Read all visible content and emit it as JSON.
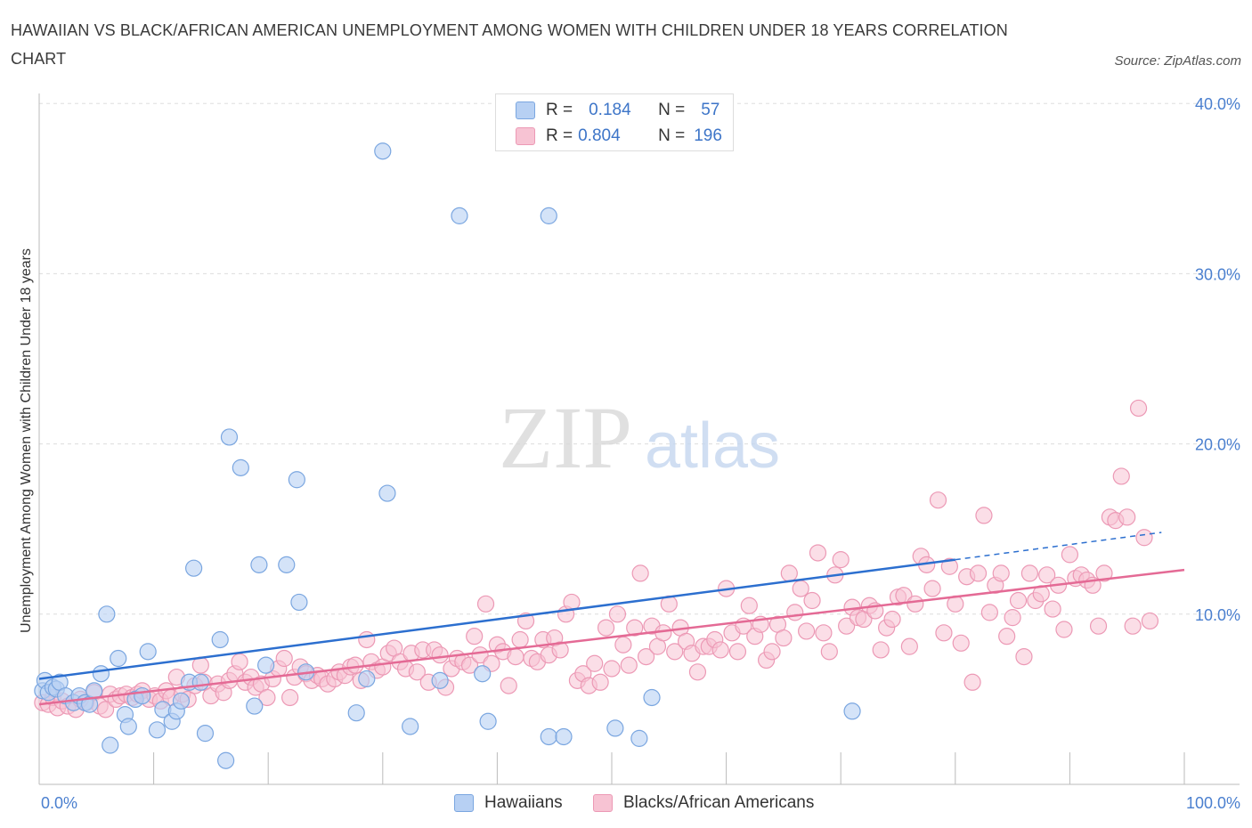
{
  "title": "HAWAIIAN VS BLACK/AFRICAN AMERICAN UNEMPLOYMENT AMONG WOMEN WITH CHILDREN UNDER 18 YEARS CORRELATION CHART",
  "source": "Source: ZipAtlas.com",
  "watermark": {
    "zip": "ZIP",
    "atlas": "atlas"
  },
  "legend": {
    "rows": [
      {
        "r_label": "R =",
        "r_value": "0.184",
        "n_label": "N =",
        "n_value": "57"
      },
      {
        "r_label": "R =",
        "r_value": "0.804",
        "n_label": "N =",
        "n_value": "196"
      }
    ]
  },
  "bottom_legend": {
    "hawaiians": "Hawaiians",
    "blacks": "Blacks/African Americans"
  },
  "colors": {
    "hawaiian_fill": "#b7d0f3",
    "hawaiian_stroke": "#7aa6e0",
    "hawaiian_line": "#2c6fcf",
    "black_fill": "#f7c3d3",
    "black_stroke": "#ec99b5",
    "black_line": "#e46a95",
    "axis_text": "#4a7fcf",
    "grid": "#dddddd"
  },
  "chart_data": {
    "type": "scatter",
    "title": "HAWAIIAN VS BLACK/AFRICAN AMERICAN UNEMPLOYMENT AMONG WOMEN WITH CHILDREN UNDER 18 YEARS CORRELATION CHART",
    "xlabel": "",
    "ylabel": "Unemployment Among Women with Children Under 18 years",
    "xlim": [
      0,
      100
    ],
    "ylim": [
      0,
      40.5
    ],
    "x_tick_labels": [
      "0.0%",
      "100.0%"
    ],
    "y_ticks": [
      10,
      20,
      30,
      40
    ],
    "y_tick_labels": [
      "10.0%",
      "20.0%",
      "30.0%",
      "40.0%"
    ],
    "grid": true,
    "legend_position": "top-center",
    "series": [
      {
        "name": "Hawaiians",
        "r": 0.184,
        "n": 57,
        "trend": {
          "x0": 0,
          "y0": 6.2,
          "x1": 80,
          "y1": 13.2,
          "dashed_to_x": 98,
          "dashed_to_y": 14.8
        },
        "points": [
          [
            0.3,
            5.5
          ],
          [
            0.5,
            6.1
          ],
          [
            0.8,
            5.4
          ],
          [
            1.2,
            5.7
          ],
          [
            1.5,
            5.6
          ],
          [
            1.8,
            6.0
          ],
          [
            2.3,
            5.2
          ],
          [
            3.0,
            4.8
          ],
          [
            3.5,
            5.2
          ],
          [
            4.0,
            4.8
          ],
          [
            4.4,
            4.7
          ],
          [
            4.8,
            5.5
          ],
          [
            5.4,
            6.5
          ],
          [
            5.9,
            10.0
          ],
          [
            6.2,
            2.3
          ],
          [
            6.9,
            7.4
          ],
          [
            7.5,
            4.1
          ],
          [
            7.8,
            3.4
          ],
          [
            8.4,
            5.0
          ],
          [
            9.0,
            5.2
          ],
          [
            9.5,
            7.8
          ],
          [
            10.3,
            3.2
          ],
          [
            10.8,
            4.4
          ],
          [
            11.6,
            3.7
          ],
          [
            12.0,
            4.3
          ],
          [
            12.4,
            4.9
          ],
          [
            13.1,
            6.0
          ],
          [
            13.5,
            12.7
          ],
          [
            14.1,
            6.0
          ],
          [
            14.5,
            3.0
          ],
          [
            15.8,
            8.5
          ],
          [
            16.3,
            1.4
          ],
          [
            16.6,
            20.4
          ],
          [
            17.6,
            18.6
          ],
          [
            18.8,
            4.6
          ],
          [
            19.2,
            12.9
          ],
          [
            19.8,
            7.0
          ],
          [
            21.6,
            12.9
          ],
          [
            22.5,
            17.9
          ],
          [
            22.7,
            10.7
          ],
          [
            23.3,
            6.6
          ],
          [
            27.7,
            4.2
          ],
          [
            28.6,
            6.2
          ],
          [
            30.0,
            37.2
          ],
          [
            30.4,
            17.1
          ],
          [
            32.4,
            3.4
          ],
          [
            35.0,
            6.1
          ],
          [
            36.7,
            33.4
          ],
          [
            38.7,
            6.5
          ],
          [
            39.2,
            3.7
          ],
          [
            44.5,
            33.4
          ],
          [
            44.5,
            2.8
          ],
          [
            45.8,
            2.8
          ],
          [
            50.3,
            3.3
          ],
          [
            52.4,
            2.7
          ],
          [
            53.5,
            5.1
          ],
          [
            71.0,
            4.3
          ]
        ]
      },
      {
        "name": "Blacks/African Americans",
        "r": 0.804,
        "n": 196,
        "trend": {
          "x0": 0,
          "y0": 4.7,
          "x1": 100,
          "y1": 12.6
        },
        "points": [
          [
            0.3,
            4.8
          ],
          [
            0.8,
            4.7
          ],
          [
            1.2,
            5.1
          ],
          [
            1.6,
            4.5
          ],
          [
            2.0,
            4.9
          ],
          [
            2.5,
            4.6
          ],
          [
            3.2,
            4.4
          ],
          [
            3.6,
            5.0
          ],
          [
            4.1,
            4.8
          ],
          [
            4.8,
            5.4
          ],
          [
            5.3,
            4.6
          ],
          [
            5.8,
            4.4
          ],
          [
            6.2,
            5.3
          ],
          [
            6.7,
            5.0
          ],
          [
            7.1,
            5.2
          ],
          [
            7.6,
            5.3
          ],
          [
            8.1,
            5.1
          ],
          [
            8.6,
            5.3
          ],
          [
            9.0,
            5.5
          ],
          [
            9.6,
            5.0
          ],
          [
            10.1,
            5.2
          ],
          [
            10.6,
            4.9
          ],
          [
            11.1,
            5.5
          ],
          [
            11.5,
            5.1
          ],
          [
            12.0,
            6.3
          ],
          [
            12.5,
            5.3
          ],
          [
            13.0,
            5.0
          ],
          [
            13.6,
            5.8
          ],
          [
            14.1,
            7.0
          ],
          [
            14.4,
            6.0
          ],
          [
            15.0,
            5.2
          ],
          [
            15.6,
            5.9
          ],
          [
            16.1,
            5.4
          ],
          [
            16.6,
            6.1
          ],
          [
            17.1,
            6.5
          ],
          [
            17.5,
            7.2
          ],
          [
            18.0,
            6.0
          ],
          [
            18.5,
            6.3
          ],
          [
            18.9,
            5.7
          ],
          [
            19.4,
            5.9
          ],
          [
            19.9,
            5.1
          ],
          [
            20.4,
            6.2
          ],
          [
            20.9,
            6.8
          ],
          [
            21.4,
            7.4
          ],
          [
            21.9,
            5.1
          ],
          [
            22.3,
            6.3
          ],
          [
            22.8,
            6.9
          ],
          [
            23.3,
            6.5
          ],
          [
            23.8,
            6.1
          ],
          [
            24.3,
            6.4
          ],
          [
            24.7,
            6.2
          ],
          [
            25.2,
            5.9
          ],
          [
            25.8,
            6.2
          ],
          [
            26.2,
            6.6
          ],
          [
            26.7,
            6.4
          ],
          [
            27.2,
            6.9
          ],
          [
            27.6,
            7.0
          ],
          [
            28.1,
            6.1
          ],
          [
            28.6,
            8.5
          ],
          [
            29.0,
            7.2
          ],
          [
            29.5,
            6.7
          ],
          [
            30.0,
            6.9
          ],
          [
            30.5,
            7.7
          ],
          [
            31.0,
            8.0
          ],
          [
            31.5,
            7.2
          ],
          [
            32.0,
            6.8
          ],
          [
            32.5,
            7.7
          ],
          [
            33.0,
            6.6
          ],
          [
            33.5,
            7.9
          ],
          [
            34.0,
            6.0
          ],
          [
            34.5,
            7.9
          ],
          [
            35.0,
            7.6
          ],
          [
            35.5,
            5.7
          ],
          [
            36.0,
            6.8
          ],
          [
            36.5,
            7.4
          ],
          [
            37.0,
            7.2
          ],
          [
            37.6,
            7.0
          ],
          [
            38.0,
            8.7
          ],
          [
            38.5,
            7.6
          ],
          [
            39.0,
            10.6
          ],
          [
            39.5,
            7.1
          ],
          [
            40.0,
            8.2
          ],
          [
            40.5,
            7.8
          ],
          [
            41.0,
            5.8
          ],
          [
            41.6,
            7.5
          ],
          [
            42.0,
            8.5
          ],
          [
            42.5,
            9.6
          ],
          [
            43.0,
            7.4
          ],
          [
            43.5,
            7.2
          ],
          [
            44.0,
            8.5
          ],
          [
            44.5,
            7.6
          ],
          [
            45.0,
            8.6
          ],
          [
            45.5,
            7.9
          ],
          [
            46.0,
            10.0
          ],
          [
            46.5,
            10.7
          ],
          [
            47.0,
            6.1
          ],
          [
            47.5,
            6.5
          ],
          [
            48.0,
            5.8
          ],
          [
            48.5,
            7.1
          ],
          [
            49.0,
            6.0
          ],
          [
            49.5,
            9.2
          ],
          [
            50.0,
            6.8
          ],
          [
            50.5,
            10.0
          ],
          [
            51.0,
            8.2
          ],
          [
            51.5,
            7.0
          ],
          [
            52.0,
            9.2
          ],
          [
            52.5,
            12.4
          ],
          [
            53.0,
            7.5
          ],
          [
            53.5,
            9.3
          ],
          [
            54.0,
            8.1
          ],
          [
            54.5,
            8.9
          ],
          [
            55.0,
            10.6
          ],
          [
            55.5,
            7.8
          ],
          [
            56.0,
            9.2
          ],
          [
            56.5,
            8.4
          ],
          [
            57.0,
            7.7
          ],
          [
            57.5,
            6.6
          ],
          [
            58.0,
            8.1
          ],
          [
            58.5,
            8.1
          ],
          [
            59.0,
            8.5
          ],
          [
            59.5,
            7.9
          ],
          [
            60.0,
            11.5
          ],
          [
            60.5,
            8.9
          ],
          [
            61.0,
            7.8
          ],
          [
            61.5,
            9.3
          ],
          [
            62.0,
            10.5
          ],
          [
            62.5,
            8.7
          ],
          [
            63.0,
            9.4
          ],
          [
            63.5,
            7.3
          ],
          [
            64.0,
            7.8
          ],
          [
            64.5,
            9.4
          ],
          [
            65.0,
            8.6
          ],
          [
            65.5,
            12.4
          ],
          [
            66.0,
            10.1
          ],
          [
            66.5,
            11.5
          ],
          [
            67.0,
            9.0
          ],
          [
            67.5,
            10.8
          ],
          [
            68.0,
            13.6
          ],
          [
            68.5,
            8.9
          ],
          [
            69.0,
            7.8
          ],
          [
            69.5,
            12.3
          ],
          [
            70.0,
            13.2
          ],
          [
            70.5,
            9.3
          ],
          [
            71.0,
            10.4
          ],
          [
            71.5,
            9.8
          ],
          [
            72.0,
            9.7
          ],
          [
            72.5,
            10.5
          ],
          [
            73.0,
            10.2
          ],
          [
            73.5,
            7.9
          ],
          [
            74.0,
            9.2
          ],
          [
            74.5,
            9.7
          ],
          [
            75.0,
            11.0
          ],
          [
            75.5,
            11.1
          ],
          [
            76.0,
            8.1
          ],
          [
            76.5,
            10.6
          ],
          [
            77.0,
            13.4
          ],
          [
            77.5,
            12.9
          ],
          [
            78.0,
            11.5
          ],
          [
            78.5,
            16.7
          ],
          [
            79.0,
            8.9
          ],
          [
            79.5,
            12.8
          ],
          [
            80.0,
            10.6
          ],
          [
            80.5,
            8.3
          ],
          [
            81.0,
            12.2
          ],
          [
            81.5,
            6.0
          ],
          [
            82.0,
            12.4
          ],
          [
            82.5,
            15.8
          ],
          [
            83.0,
            10.1
          ],
          [
            83.5,
            11.7
          ],
          [
            84.0,
            12.4
          ],
          [
            84.5,
            8.7
          ],
          [
            85.0,
            9.8
          ],
          [
            85.5,
            10.8
          ],
          [
            86.0,
            7.5
          ],
          [
            86.5,
            12.4
          ],
          [
            87.0,
            10.8
          ],
          [
            87.5,
            11.2
          ],
          [
            88.0,
            12.3
          ],
          [
            88.5,
            10.3
          ],
          [
            89.0,
            11.7
          ],
          [
            89.5,
            9.1
          ],
          [
            90.0,
            13.5
          ],
          [
            90.5,
            12.1
          ],
          [
            91.0,
            12.3
          ],
          [
            91.5,
            12.0
          ],
          [
            92.0,
            11.7
          ],
          [
            92.5,
            9.3
          ],
          [
            93.0,
            12.4
          ],
          [
            93.5,
            15.7
          ],
          [
            94.0,
            15.5
          ],
          [
            94.5,
            18.1
          ],
          [
            95.0,
            15.7
          ],
          [
            95.5,
            9.3
          ],
          [
            96.0,
            22.1
          ],
          [
            96.5,
            14.5
          ],
          [
            97.0,
            9.6
          ]
        ]
      }
    ]
  }
}
